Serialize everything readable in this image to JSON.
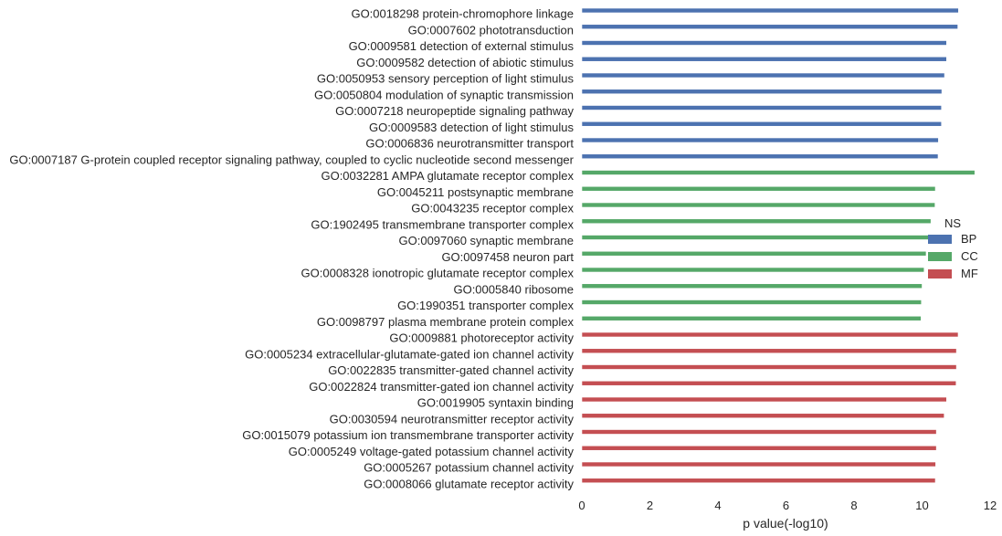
{
  "chart_data": {
    "type": "bar",
    "orientation": "horizontal",
    "xlabel": "p value(-log10)",
    "ylabel": "",
    "xlim": [
      0,
      12
    ],
    "xticks": [
      "0",
      "2",
      "4",
      "6",
      "8",
      "10",
      "12"
    ],
    "grid": false,
    "legend": {
      "title": "NS",
      "placement": "center-right",
      "entries": [
        {
          "name": "BP",
          "color": "#4c72b0"
        },
        {
          "name": "CC",
          "color": "#55a868"
        },
        {
          "name": "MF",
          "color": "#c44e52"
        }
      ]
    },
    "categories": [
      "GO:0018298 protein-chromophore linkage",
      "GO:0007602 phototransduction",
      "GO:0009581 detection of external stimulus",
      "GO:0009582 detection of abiotic stimulus",
      "GO:0050953 sensory perception of light stimulus",
      "GO:0050804 modulation of synaptic transmission",
      "GO:0007218 neuropeptide signaling pathway",
      "GO:0009583 detection of light stimulus",
      "GO:0006836 neurotransmitter transport",
      "GO:0007187 G-protein coupled receptor signaling pathway, coupled to cyclic nucleotide second messenger",
      "GO:0032281 AMPA glutamate receptor complex",
      "GO:0045211 postsynaptic membrane",
      "GO:0043235 receptor complex",
      "GO:1902495 transmembrane transporter complex",
      "GO:0097060 synaptic membrane",
      "GO:0097458 neuron part",
      "GO:0008328 ionotropic glutamate receptor complex",
      "GO:0005840 ribosome",
      "GO:1990351 transporter complex",
      "GO:0098797 plasma membrane protein complex",
      "GO:0009881 photoreceptor activity",
      "GO:0005234 extracellular-glutamate-gated ion channel activity",
      "GO:0022835 transmitter-gated channel activity",
      "GO:0022824 transmitter-gated ion channel activity",
      "GO:0019905 syntaxin binding",
      "GO:0030594 neurotransmitter receptor activity",
      "GO:0015079 potassium ion transmembrane transporter activity",
      "GO:0005249 voltage-gated potassium channel activity",
      "GO:0005267 potassium channel activity",
      "GO:0008066 glutamate receptor activity"
    ],
    "groups": [
      "BP",
      "BP",
      "BP",
      "BP",
      "BP",
      "BP",
      "BP",
      "BP",
      "BP",
      "BP",
      "CC",
      "CC",
      "CC",
      "CC",
      "CC",
      "CC",
      "CC",
      "CC",
      "CC",
      "CC",
      "MF",
      "MF",
      "MF",
      "MF",
      "MF",
      "MF",
      "MF",
      "MF",
      "MF",
      "MF"
    ],
    "values": [
      11.07,
      11.05,
      10.72,
      10.72,
      10.66,
      10.58,
      10.57,
      10.57,
      10.48,
      10.47,
      11.55,
      10.39,
      10.38,
      10.26,
      10.22,
      10.12,
      10.06,
      10.0,
      9.98,
      9.97,
      11.06,
      11.01,
      11.01,
      11.0,
      10.72,
      10.65,
      10.42,
      10.42,
      10.4,
      10.39
    ]
  }
}
